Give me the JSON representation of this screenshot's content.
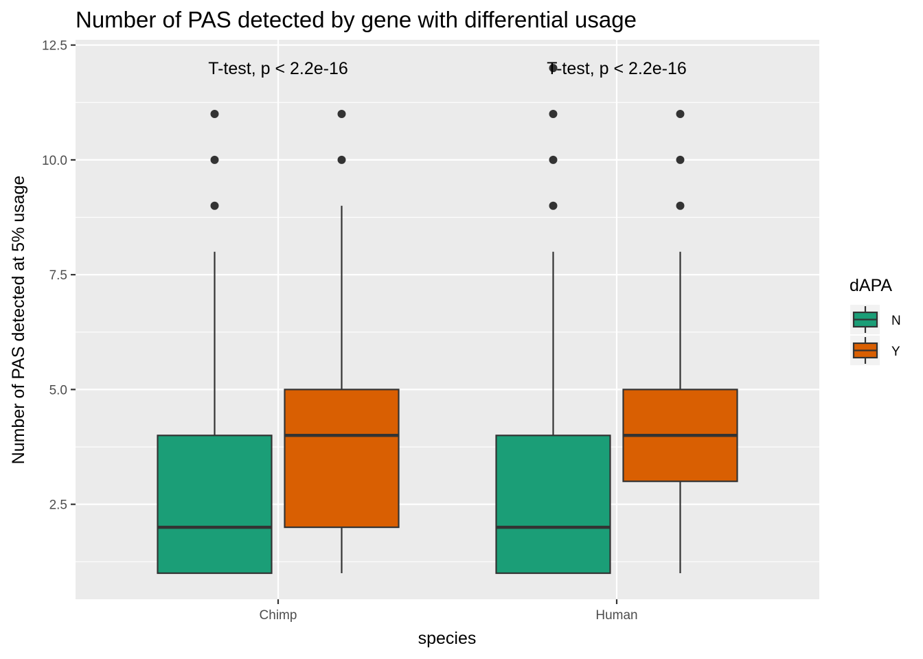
{
  "chart_data": {
    "type": "boxplot",
    "title": "Number of PAS detected by gene with differential usage",
    "xlabel": "species",
    "ylabel": "Number of PAS detected at 5% usage",
    "categories": [
      "Chimp",
      "Human"
    ],
    "ylim": [
      0.8,
      12.55
    ],
    "yticks": [
      2.5,
      5.0,
      7.5,
      10.0,
      12.5
    ],
    "ytick_labels": [
      "2.5",
      "5.0",
      "7.5",
      "10.0",
      "12.5"
    ],
    "grid": true,
    "legend": {
      "title": "dAPA",
      "position": "right",
      "entries": [
        {
          "label": "N",
          "color": "#1b9e77"
        },
        {
          "label": "Y",
          "color": "#d95f02"
        }
      ]
    },
    "annotations": [
      {
        "category": "Chimp",
        "text": "T-test, p < 2.2e-16",
        "y": 12.0
      },
      {
        "category": "Human",
        "text": "T-test, p < 2.2e-16",
        "y": 12.0
      }
    ],
    "series": [
      {
        "name": "N",
        "color": "#1b9e77",
        "boxes": [
          {
            "category": "Chimp",
            "whisker_low": 1,
            "q1": 1,
            "median": 2,
            "q3": 4,
            "whisker_high": 8,
            "outliers": [
              9,
              10,
              11
            ]
          },
          {
            "category": "Human",
            "whisker_low": 1,
            "q1": 1,
            "median": 2,
            "q3": 4,
            "whisker_high": 8,
            "outliers": [
              9,
              10,
              11,
              12
            ]
          }
        ]
      },
      {
        "name": "Y",
        "color": "#d95f02",
        "boxes": [
          {
            "category": "Chimp",
            "whisker_low": 1,
            "q1": 2,
            "median": 4,
            "q3": 5,
            "whisker_high": 9,
            "outliers": [
              10,
              11
            ]
          },
          {
            "category": "Human",
            "whisker_low": 1,
            "q1": 3,
            "median": 4,
            "q3": 5,
            "whisker_high": 8,
            "outliers": [
              9,
              10,
              11
            ]
          }
        ]
      }
    ]
  },
  "colors": {
    "panel_background": "#ebebeb",
    "grid_major": "#ffffff",
    "box_outline": "#333333",
    "outlier": "#333333"
  }
}
